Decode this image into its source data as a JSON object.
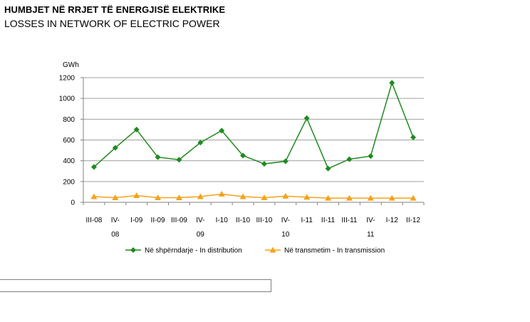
{
  "header": {
    "title": "HUMBJET NË RRJET TË ENERGJISË ELEKTRIKE",
    "subtitle": "LOSSES IN NETWORK OF ELECTRIC POWER"
  },
  "chart_data": {
    "type": "line",
    "ylabel": "GWh",
    "ylim": [
      0,
      1200
    ],
    "yticks": [
      0,
      200,
      400,
      600,
      800,
      1000,
      1200
    ],
    "grid": true,
    "legend_position": "bottom",
    "categories": [
      [
        "III-08"
      ],
      [
        "IV-",
        "08"
      ],
      [
        "I-09"
      ],
      [
        "II-09"
      ],
      [
        "III-09"
      ],
      [
        "IV-",
        "09"
      ],
      [
        "I-10"
      ],
      [
        "II-10"
      ],
      [
        "III-10"
      ],
      [
        "IV-",
        "10"
      ],
      [
        "I-11"
      ],
      [
        "II-11"
      ],
      [
        "III-11"
      ],
      [
        "IV-",
        "11"
      ],
      [
        "I-12"
      ],
      [
        "II-12"
      ]
    ],
    "series": [
      {
        "name": "Në shpërndarje - In distribution",
        "color": "#1f8a1f",
        "marker": "diamond",
        "values": [
          340,
          525,
          700,
          435,
          410,
          575,
          690,
          450,
          370,
          395,
          810,
          325,
          415,
          445,
          1150,
          625
        ]
      },
      {
        "name": "Në transmetim - In transmission",
        "color": "#f5a21a",
        "marker": "triangle",
        "values": [
          55,
          45,
          65,
          45,
          45,
          55,
          80,
          55,
          45,
          60,
          50,
          40,
          40,
          40,
          40,
          40
        ]
      }
    ]
  },
  "form": {
    "input_value": ""
  }
}
